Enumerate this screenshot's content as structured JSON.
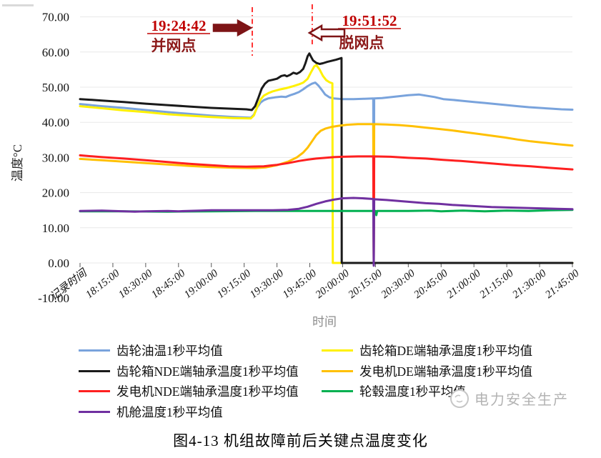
{
  "page": {
    "caption": "图4-13 机组故障前后关键点温度变化"
  },
  "watermark": {
    "text": "电力安全生产"
  },
  "chart_data": {
    "type": "line",
    "xlabel": "时间",
    "ylabel": "温度°C",
    "ylim": [
      -10,
      70
    ],
    "ytick_step": 10,
    "ytick_labels": [
      "70.00",
      "60.00",
      "50.00",
      "40.00",
      "30.00",
      "20.00",
      "10.00",
      "0.00",
      "-10.00"
    ],
    "x_categories": [
      "记录时间",
      "18:15:00",
      "18:30:00",
      "18:45:00",
      "19:00:00",
      "19:15:00",
      "19:30:00",
      "19:45:00",
      "20:00:00",
      "20:15:00",
      "20:30:00",
      "20:45:00",
      "21:00:00",
      "21:15:00",
      "21:30:00",
      "21:45:00"
    ],
    "x_unit": "minutes after 18:00",
    "x_range": [
      0,
      225
    ],
    "grid": true,
    "legend_position": "bottom",
    "colors": {
      "grid": "#e8e8e8",
      "tick": "#595959",
      "anno_time": "#c00000",
      "anno_name": "#8c1a1a",
      "anno_arrow": "#7d1416",
      "anno_line": "#ff0000"
    },
    "annotations": [
      {
        "time": "19:24:42",
        "name": "并网点",
        "t": 78.7,
        "arrow": "right"
      },
      {
        "time": "19:51:52",
        "name": "脱网点",
        "t": 106.1,
        "arrow": "left"
      }
    ],
    "legend_columns": [
      [
        0,
        2,
        4,
        6
      ],
      [
        1,
        3,
        5
      ]
    ],
    "series": [
      {
        "name": "齿轮油温1秒平均值",
        "color": "#79a3dc",
        "points": [
          [
            0,
            45.2
          ],
          [
            10,
            44.6
          ],
          [
            20,
            44.1
          ],
          [
            30,
            43.5
          ],
          [
            40,
            42.9
          ],
          [
            50,
            42.4
          ],
          [
            60,
            41.9
          ],
          [
            70,
            41.5
          ],
          [
            78,
            41.3
          ],
          [
            79.5,
            42.2
          ],
          [
            81,
            44.3
          ],
          [
            82.5,
            45.6
          ],
          [
            84,
            46.3
          ],
          [
            86,
            46.8
          ],
          [
            89,
            47.1
          ],
          [
            92,
            47.3
          ],
          [
            94,
            47.2
          ],
          [
            96,
            47.7
          ],
          [
            98,
            48.1
          ],
          [
            100,
            48.6
          ],
          [
            102,
            49.4
          ],
          [
            104,
            50.3
          ],
          [
            106,
            51.0
          ],
          [
            107.5,
            51.3
          ],
          [
            109,
            50.4
          ],
          [
            110.5,
            49.2
          ],
          [
            112,
            47.9
          ],
          [
            114,
            47.1
          ],
          [
            116,
            46.8
          ],
          [
            120,
            46.6
          ],
          [
            125,
            46.6
          ],
          [
            130,
            46.7
          ],
          [
            134,
            46.8
          ],
          [
            134.2,
            0
          ],
          [
            134.4,
            46.8
          ],
          [
            138,
            46.9
          ],
          [
            144,
            47.3
          ],
          [
            150,
            47.7
          ],
          [
            155,
            47.9
          ],
          [
            158,
            47.6
          ],
          [
            162,
            47.2
          ],
          [
            166,
            46.6
          ],
          [
            170,
            46.4
          ],
          [
            175,
            46.1
          ],
          [
            180,
            45.8
          ],
          [
            185,
            45.5
          ],
          [
            190,
            45.2
          ],
          [
            195,
            44.9
          ],
          [
            200,
            44.6
          ],
          [
            205,
            44.3
          ],
          [
            210,
            44.1
          ],
          [
            215,
            43.9
          ],
          [
            220,
            43.7
          ],
          [
            225,
            43.6
          ]
        ]
      },
      {
        "name": "齿轮箱DE端轴承温度1秒平均值",
        "color": "#fff100",
        "points": [
          [
            0,
            44.6
          ],
          [
            10,
            44.0
          ],
          [
            20,
            43.4
          ],
          [
            30,
            42.9
          ],
          [
            40,
            42.3
          ],
          [
            50,
            41.9
          ],
          [
            60,
            41.5
          ],
          [
            70,
            41.2
          ],
          [
            78,
            41.1
          ],
          [
            79.5,
            42.0
          ],
          [
            81,
            44.5
          ],
          [
            82.5,
            46.5
          ],
          [
            84,
            47.6
          ],
          [
            86,
            48.3
          ],
          [
            88,
            48.8
          ],
          [
            91,
            49.3
          ],
          [
            94,
            49.7
          ],
          [
            97,
            50.2
          ],
          [
            100,
            50.8
          ],
          [
            102,
            51.3
          ],
          [
            104,
            52.4
          ],
          [
            105.5,
            54.2
          ],
          [
            107,
            55.9
          ],
          [
            108,
            56.3
          ],
          [
            109.5,
            55.0
          ],
          [
            111,
            53.2
          ],
          [
            112.5,
            52.0
          ],
          [
            114,
            51.4
          ],
          [
            115.3,
            51.1
          ],
          [
            115.5,
            0
          ],
          [
            225,
            0
          ]
        ]
      },
      {
        "name": "齿轮箱NDE端轴承温度1秒平均值",
        "color": "#1a1a1a",
        "points": [
          [
            0,
            46.6
          ],
          [
            10,
            46.2
          ],
          [
            20,
            45.8
          ],
          [
            30,
            45.3
          ],
          [
            40,
            44.9
          ],
          [
            50,
            44.5
          ],
          [
            60,
            44.1
          ],
          [
            68,
            43.9
          ],
          [
            72,
            43.8
          ],
          [
            76,
            43.7
          ],
          [
            78.5,
            43.5
          ],
          [
            80,
            44.6
          ],
          [
            81.5,
            47.0
          ],
          [
            83,
            49.6
          ],
          [
            84.5,
            51.0
          ],
          [
            86,
            51.8
          ],
          [
            88,
            52.1
          ],
          [
            90,
            52.4
          ],
          [
            92,
            53.2
          ],
          [
            93.5,
            53.4
          ],
          [
            94.5,
            53.1
          ],
          [
            96,
            53.5
          ],
          [
            97.5,
            54.1
          ],
          [
            99,
            53.8
          ],
          [
            100.5,
            54.3
          ],
          [
            102,
            55.2
          ],
          [
            103,
            56.8
          ],
          [
            104,
            58.8
          ],
          [
            104.8,
            59.6
          ],
          [
            105.6,
            58.6
          ],
          [
            106.5,
            57.6
          ],
          [
            108,
            56.9
          ],
          [
            109.5,
            56.6
          ],
          [
            111,
            56.8
          ],
          [
            113,
            57.2
          ],
          [
            115,
            57.5
          ],
          [
            117,
            57.8
          ],
          [
            119,
            58.2
          ],
          [
            119.5,
            58.3
          ],
          [
            119.6,
            0
          ],
          [
            225,
            0
          ]
        ]
      },
      {
        "name": "发电机DE端轴承温度1秒平均值",
        "color": "#ffc000",
        "points": [
          [
            0,
            29.6
          ],
          [
            10,
            29.2
          ],
          [
            20,
            28.8
          ],
          [
            30,
            28.4
          ],
          [
            40,
            28.0
          ],
          [
            50,
            27.6
          ],
          [
            60,
            27.3
          ],
          [
            70,
            27.1
          ],
          [
            80,
            27.0
          ],
          [
            85,
            27.2
          ],
          [
            90,
            27.8
          ],
          [
            95,
            28.8
          ],
          [
            99,
            30.0
          ],
          [
            102,
            31.4
          ],
          [
            104,
            32.8
          ],
          [
            106,
            34.6
          ],
          [
            108,
            36.4
          ],
          [
            110,
            37.6
          ],
          [
            112,
            38.2
          ],
          [
            115,
            38.7
          ],
          [
            118,
            39.0
          ],
          [
            122,
            39.3
          ],
          [
            127,
            39.5
          ],
          [
            134,
            39.5
          ],
          [
            134.2,
            0
          ],
          [
            134.4,
            39.5
          ],
          [
            140,
            39.4
          ],
          [
            146,
            39.2
          ],
          [
            152,
            38.9
          ],
          [
            158,
            38.5
          ],
          [
            164,
            38.1
          ],
          [
            170,
            37.7
          ],
          [
            176,
            37.2
          ],
          [
            182,
            36.7
          ],
          [
            188,
            36.2
          ],
          [
            194,
            35.7
          ],
          [
            200,
            35.1
          ],
          [
            206,
            34.6
          ],
          [
            212,
            34.2
          ],
          [
            218,
            33.8
          ],
          [
            225,
            33.4
          ]
        ]
      },
      {
        "name": "发电机NDE端轴承温度1秒平均值",
        "color": "#fe2020",
        "points": [
          [
            0,
            30.6
          ],
          [
            10,
            30.1
          ],
          [
            20,
            29.7
          ],
          [
            30,
            29.2
          ],
          [
            40,
            28.7
          ],
          [
            50,
            28.2
          ],
          [
            60,
            27.8
          ],
          [
            68,
            27.5
          ],
          [
            76,
            27.4
          ],
          [
            84,
            27.5
          ],
          [
            90,
            27.9
          ],
          [
            95,
            28.4
          ],
          [
            100,
            29.0
          ],
          [
            104,
            29.4
          ],
          [
            108,
            29.7
          ],
          [
            112,
            29.9
          ],
          [
            116,
            30.1
          ],
          [
            120,
            30.2
          ],
          [
            127,
            30.3
          ],
          [
            134,
            30.3
          ],
          [
            134.2,
            0
          ],
          [
            134.4,
            30.3
          ],
          [
            142,
            30.2
          ],
          [
            150,
            29.9
          ],
          [
            158,
            29.7
          ],
          [
            166,
            29.3
          ],
          [
            174,
            29.0
          ],
          [
            182,
            28.6
          ],
          [
            190,
            28.2
          ],
          [
            198,
            27.8
          ],
          [
            206,
            27.5
          ],
          [
            214,
            27.1
          ],
          [
            225,
            26.6
          ]
        ]
      },
      {
        "name": "轮毂温度1秒平均值",
        "color": "#00b050",
        "points": [
          [
            0,
            14.7
          ],
          [
            20,
            14.7
          ],
          [
            40,
            14.6
          ],
          [
            60,
            14.7
          ],
          [
            80,
            14.8
          ],
          [
            100,
            14.8
          ],
          [
            120,
            14.8
          ],
          [
            134,
            14.8
          ],
          [
            135,
            14.8
          ],
          [
            135.4,
            13.6
          ],
          [
            135.8,
            14.8
          ],
          [
            150,
            14.8
          ],
          [
            160,
            14.9
          ],
          [
            165,
            14.7
          ],
          [
            175,
            14.9
          ],
          [
            185,
            14.7
          ],
          [
            195,
            14.9
          ],
          [
            205,
            14.8
          ],
          [
            215,
            15.0
          ],
          [
            225,
            15.1
          ]
        ]
      },
      {
        "name": "机舱温度1秒平均值",
        "color": "#7030a0",
        "points": [
          [
            0,
            14.8
          ],
          [
            10,
            14.9
          ],
          [
            15,
            14.8
          ],
          [
            25,
            14.6
          ],
          [
            30,
            14.7
          ],
          [
            40,
            14.8
          ],
          [
            45,
            14.7
          ],
          [
            55,
            14.9
          ],
          [
            60,
            15.0
          ],
          [
            70,
            15.0
          ],
          [
            80,
            15.0
          ],
          [
            88,
            15.0
          ],
          [
            95,
            15.1
          ],
          [
            100,
            15.4
          ],
          [
            104,
            16.0
          ],
          [
            108,
            16.8
          ],
          [
            112,
            17.5
          ],
          [
            116,
            18.0
          ],
          [
            120,
            18.4
          ],
          [
            125,
            18.5
          ],
          [
            129,
            18.4
          ],
          [
            134,
            18.2
          ],
          [
            134.2,
            -0.8
          ],
          [
            134.4,
            18.1
          ],
          [
            140,
            17.9
          ],
          [
            146,
            17.6
          ],
          [
            152,
            17.3
          ],
          [
            158,
            17.0
          ],
          [
            164,
            16.8
          ],
          [
            170,
            16.5
          ],
          [
            176,
            16.3
          ],
          [
            182,
            16.1
          ],
          [
            188,
            15.9
          ],
          [
            194,
            15.8
          ],
          [
            200,
            15.7
          ],
          [
            206,
            15.6
          ],
          [
            212,
            15.5
          ],
          [
            218,
            15.4
          ],
          [
            225,
            15.3
          ]
        ]
      }
    ]
  }
}
